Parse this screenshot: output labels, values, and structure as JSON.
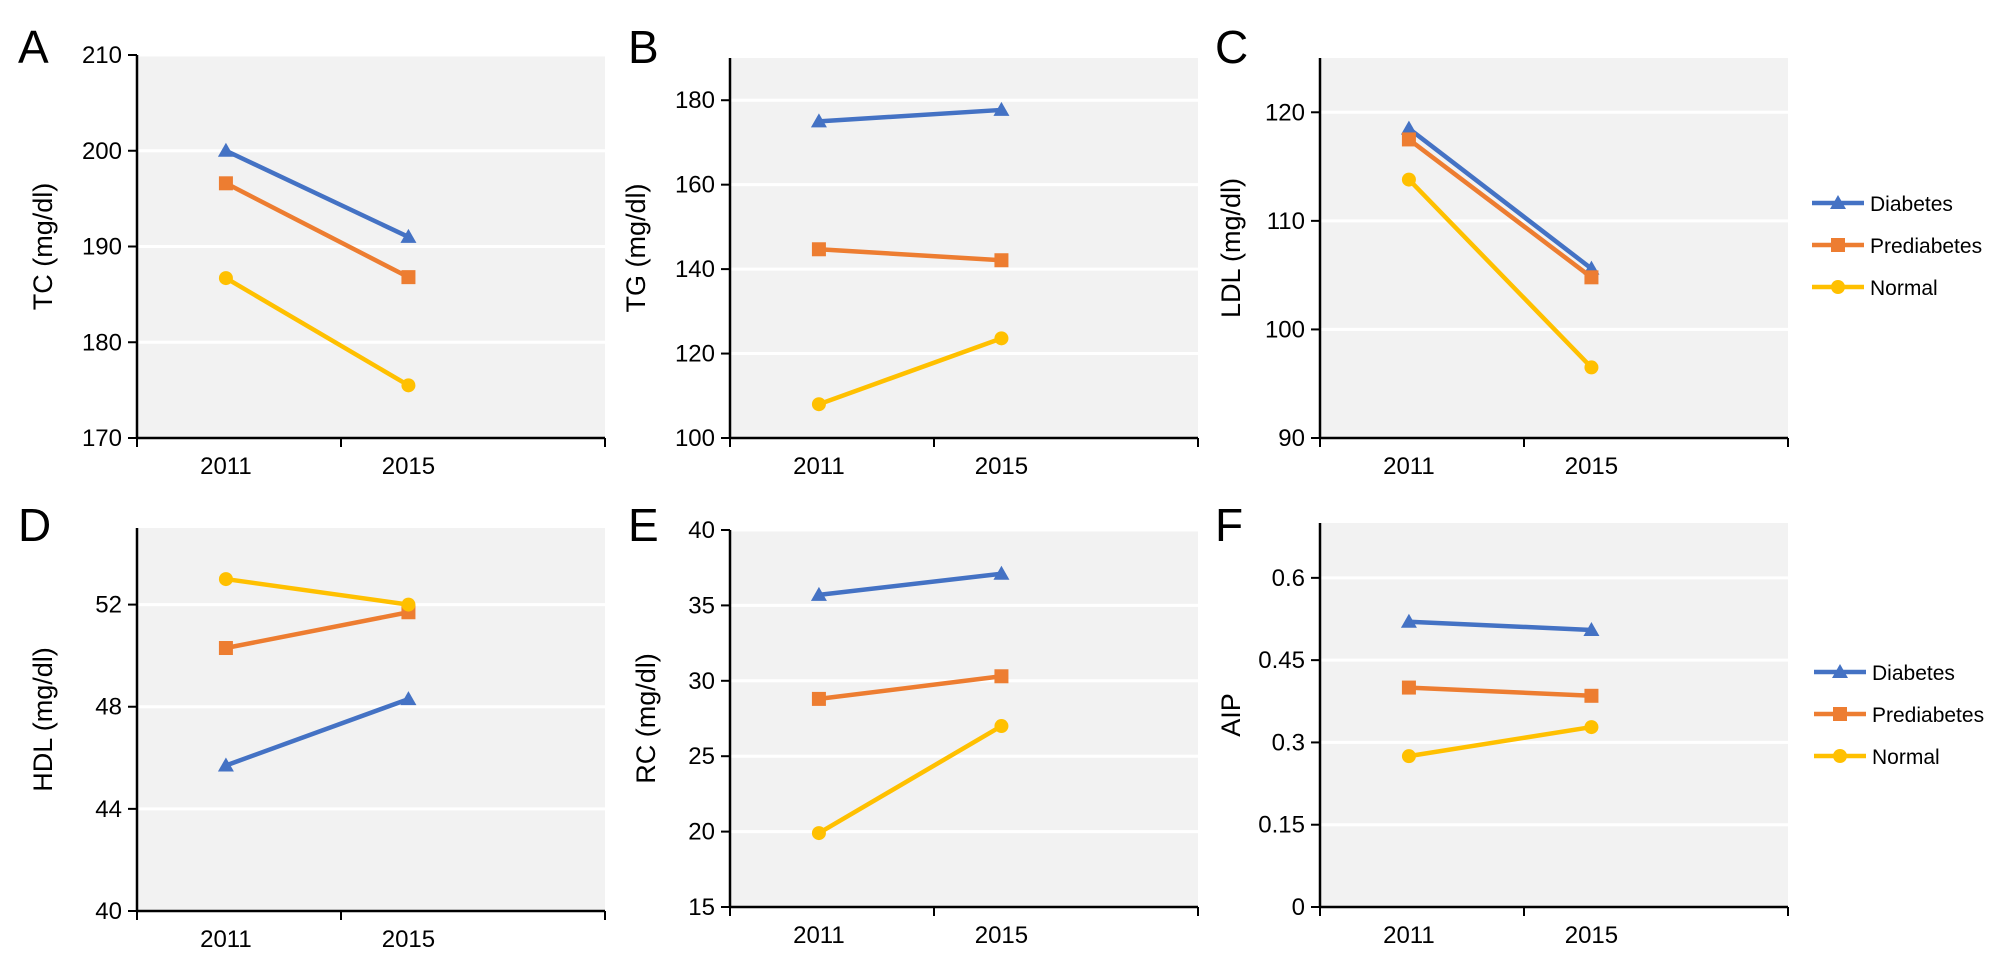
{
  "legend": {
    "entries": [
      {
        "name": "Diabetes",
        "color": "#4472C4",
        "marker": "triangle"
      },
      {
        "name": "Prediabetes",
        "color": "#ED7D31",
        "marker": "square"
      },
      {
        "name": "Normal",
        "color": "#FFC000",
        "marker": "circle"
      }
    ]
  },
  "chart_data": [
    {
      "panel": "A",
      "type": "line",
      "categories": [
        "2011",
        "2015"
      ],
      "ylabel": "TC (mg/dl)",
      "ylim": [
        170,
        210
      ],
      "yticks": [
        170,
        180,
        190,
        200,
        210
      ],
      "yticklabels": [
        "170",
        "180",
        "190",
        "200",
        "210"
      ],
      "series": [
        {
          "name": "Diabetes",
          "values": [
            200.0,
            191.0
          ]
        },
        {
          "name": "Prediabetes",
          "values": [
            196.6,
            186.8
          ]
        },
        {
          "name": "Normal",
          "values": [
            186.7,
            175.5
          ]
        }
      ]
    },
    {
      "panel": "B",
      "type": "line",
      "categories": [
        "2011",
        "2015"
      ],
      "ylabel": "TG (mg/dl)",
      "ylim": [
        100,
        190
      ],
      "yticks": [
        100,
        120,
        140,
        160,
        180
      ],
      "yticklabels": [
        "100",
        "120",
        "140",
        "160",
        "180"
      ],
      "series": [
        {
          "name": "Diabetes",
          "values": [
            175.0,
            177.7
          ]
        },
        {
          "name": "Prediabetes",
          "values": [
            144.7,
            142.1
          ]
        },
        {
          "name": "Normal",
          "values": [
            108.0,
            123.6
          ]
        }
      ]
    },
    {
      "panel": "C",
      "type": "line",
      "categories": [
        "2011",
        "2015"
      ],
      "ylabel": "LDL (mg/dl)",
      "ylim": [
        90,
        125
      ],
      "yticks": [
        90,
        100,
        110,
        120
      ],
      "yticklabels": [
        "90",
        "100",
        "110",
        "120"
      ],
      "series": [
        {
          "name": "Diabetes",
          "values": [
            118.5,
            105.6
          ]
        },
        {
          "name": "Prediabetes",
          "values": [
            117.5,
            104.8
          ]
        },
        {
          "name": "Normal",
          "values": [
            113.8,
            96.5
          ]
        }
      ]
    },
    {
      "panel": "D",
      "type": "line",
      "categories": [
        "2011",
        "2015"
      ],
      "ylabel": "HDL (mg/dl)",
      "ylim": [
        40,
        55
      ],
      "yticks": [
        40,
        44,
        48,
        52
      ],
      "yticklabels": [
        "40",
        "44",
        "48",
        "52"
      ],
      "series": [
        {
          "name": "Diabetes",
          "values": [
            45.7,
            48.3
          ]
        },
        {
          "name": "Prediabetes",
          "values": [
            50.3,
            51.7
          ]
        },
        {
          "name": "Normal",
          "values": [
            53.0,
            52.0
          ]
        }
      ]
    },
    {
      "panel": "E",
      "type": "line",
      "categories": [
        "2011",
        "2015"
      ],
      "ylabel": "RC (mg/dl)",
      "ylim": [
        15,
        40
      ],
      "yticks": [
        15,
        20,
        25,
        30,
        35,
        40
      ],
      "yticklabels": [
        "15",
        "20",
        "25",
        "30",
        "35",
        "40"
      ],
      "series": [
        {
          "name": "Diabetes",
          "values": [
            35.7,
            37.1
          ]
        },
        {
          "name": "Prediabetes",
          "values": [
            28.8,
            30.3
          ]
        },
        {
          "name": "Normal",
          "values": [
            19.9,
            27.0
          ]
        }
      ]
    },
    {
      "panel": "F",
      "type": "line",
      "categories": [
        "2011",
        "2015"
      ],
      "ylabel": "AIP",
      "ylim": [
        0,
        0.7
      ],
      "yticks": [
        0,
        0.15,
        0.3,
        0.45,
        0.6
      ],
      "yticklabels": [
        "0",
        "0.15",
        "0.3",
        "0.45",
        "0.6"
      ],
      "series": [
        {
          "name": "Diabetes",
          "values": [
            0.52,
            0.505
          ]
        },
        {
          "name": "Prediabetes",
          "values": [
            0.4,
            0.385
          ]
        },
        {
          "name": "Normal",
          "values": [
            0.275,
            0.328
          ]
        }
      ]
    }
  ]
}
